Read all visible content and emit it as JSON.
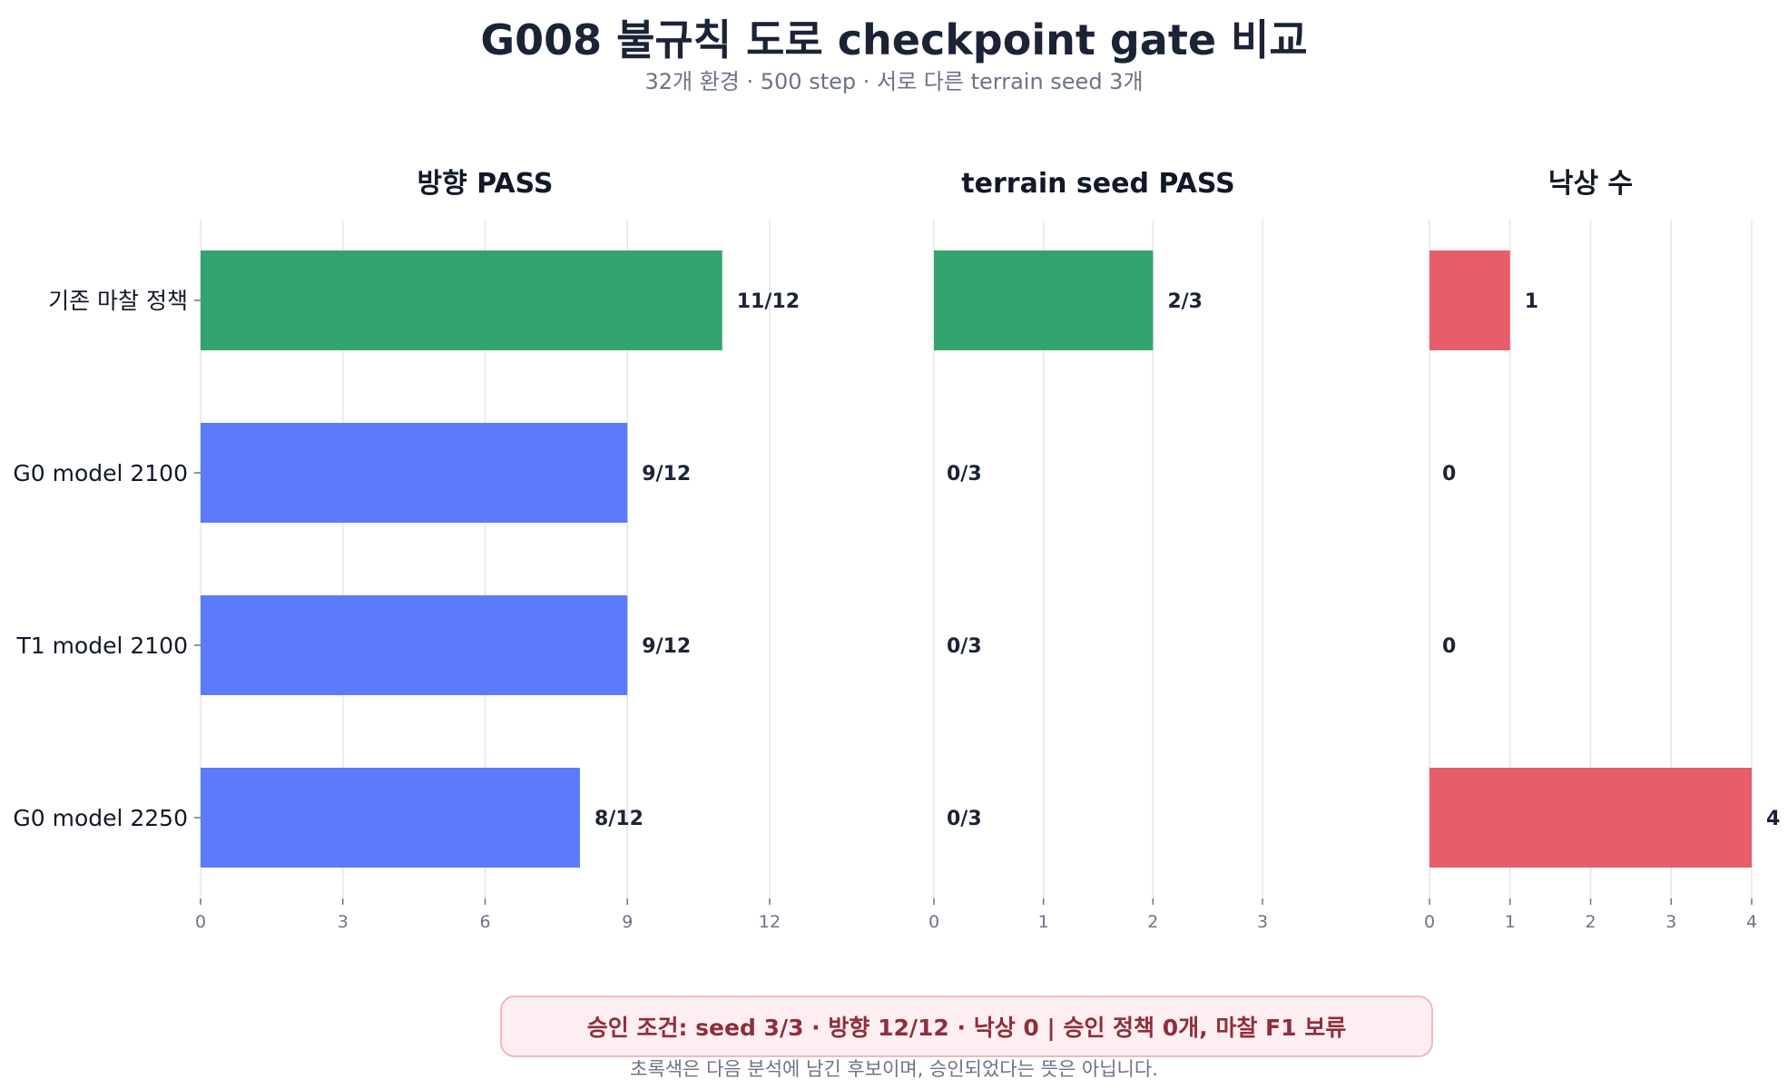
{
  "title": "G008 불규칙 도로 checkpoint gate 비교",
  "subtitle": "32개 환경 · 500 step · 서로 다른 terrain seed 3개",
  "notice": "승인 조건: seed 3/3 · 방향 12/12 · 낙상 0   |   승인 정책 0개, 마찰 F1 보류",
  "footnote": "초록색은 다음 분석에 남긴 후보이며, 승인되었다는 뜻은 아닙니다.",
  "colors": {
    "green": "#33a46d",
    "blue": "#5b7bfa",
    "red": "#e75d69",
    "grid": "#e3e6ef",
    "text": "#1b2437",
    "tick": "#6b7385"
  },
  "chart_data": [
    {
      "type": "bar",
      "orientation": "horizontal",
      "title": "방향 PASS",
      "categories": [
        "기존 마찰 정책",
        "G0 model 2100",
        "T1 model 2100",
        "G0 model 2250"
      ],
      "values": [
        11,
        9,
        9,
        8
      ],
      "labels": [
        "11/12",
        "9/12",
        "9/12",
        "8/12"
      ],
      "bar_colors": [
        "green",
        "blue",
        "blue",
        "blue"
      ],
      "xlim": [
        0,
        12
      ],
      "xticks": [
        0,
        3,
        6,
        9,
        12
      ],
      "grid": true
    },
    {
      "type": "bar",
      "orientation": "horizontal",
      "title": "terrain seed PASS",
      "categories": [
        "기존 마찰 정책",
        "G0 model 2100",
        "T1 model 2100",
        "G0 model 2250"
      ],
      "values": [
        2,
        0,
        0,
        0
      ],
      "labels": [
        "2/3",
        "0/3",
        "0/3",
        "0/3"
      ],
      "bar_colors": [
        "green",
        "blue",
        "blue",
        "blue"
      ],
      "xlim": [
        0,
        3
      ],
      "xticks": [
        0,
        1,
        2,
        3
      ],
      "grid": true
    },
    {
      "type": "bar",
      "orientation": "horizontal",
      "title": "낙상 수",
      "categories": [
        "기존 마찰 정책",
        "G0 model 2100",
        "T1 model 2100",
        "G0 model 2250"
      ],
      "values": [
        1,
        0,
        0,
        4
      ],
      "labels": [
        "1",
        "0",
        "0",
        "4"
      ],
      "bar_colors": [
        "red",
        "red",
        "red",
        "red"
      ],
      "xlim": [
        0,
        4
      ],
      "xticks": [
        0,
        1,
        2,
        3,
        4
      ],
      "grid": true
    }
  ]
}
